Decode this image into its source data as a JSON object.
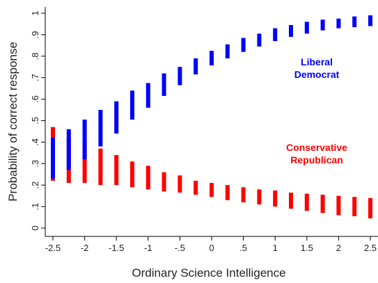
{
  "chart_data": {
    "type": "range_bar",
    "xlabel": "Ordinary Science Intelligence",
    "ylabel": "Probability of correct response",
    "x": [
      -2.5,
      -2.25,
      -2,
      -1.75,
      -1.5,
      -1.25,
      -1,
      -0.75,
      -0.5,
      -0.25,
      0,
      0.25,
      0.5,
      0.75,
      1,
      1.25,
      1.5,
      1.75,
      2,
      2.25,
      2.5
    ],
    "series": [
      {
        "name": "Conservative Republican",
        "color": "#ff0000",
        "low": [
          0.22,
          0.21,
          0.21,
          0.2,
          0.2,
          0.19,
          0.18,
          0.17,
          0.165,
          0.155,
          0.145,
          0.13,
          0.12,
          0.11,
          0.1,
          0.09,
          0.08,
          0.07,
          0.06,
          0.055,
          0.045
        ],
        "high": [
          0.47,
          0.42,
          0.4,
          0.37,
          0.34,
          0.31,
          0.29,
          0.26,
          0.245,
          0.22,
          0.21,
          0.2,
          0.19,
          0.18,
          0.175,
          0.165,
          0.16,
          0.155,
          0.15,
          0.145,
          0.14
        ]
      },
      {
        "name": "Liberal Democrat",
        "color": "#0000ff",
        "low": [
          0.23,
          0.27,
          0.32,
          0.38,
          0.44,
          0.505,
          0.56,
          0.615,
          0.665,
          0.715,
          0.757,
          0.79,
          0.82,
          0.845,
          0.87,
          0.89,
          0.905,
          0.92,
          0.93,
          0.935,
          0.94
        ],
        "high": [
          0.42,
          0.46,
          0.505,
          0.55,
          0.59,
          0.64,
          0.675,
          0.72,
          0.75,
          0.79,
          0.825,
          0.855,
          0.885,
          0.905,
          0.93,
          0.945,
          0.96,
          0.97,
          0.975,
          0.985,
          0.99
        ]
      }
    ],
    "xlim": [
      -2.5,
      2.5
    ],
    "xticks": [
      {
        "value": -2.5,
        "label": "-2.5"
      },
      -2,
      -1.5,
      -1,
      {
        "value": -0.5,
        "label": "-.5"
      },
      0,
      {
        "value": 0.5,
        "label": ".5"
      },
      1,
      1.5,
      2,
      2.5
    ],
    "ylim": [
      0,
      1
    ],
    "yticks": [
      0,
      {
        "value": 0.1,
        "label": ".1"
      },
      {
        "value": 0.2,
        "label": ".2"
      },
      {
        "value": 0.3,
        "label": ".3"
      },
      {
        "value": 0.4,
        "label": ".4"
      },
      {
        "value": 0.5,
        "label": ".5"
      },
      {
        "value": 0.6,
        "label": ".6"
      },
      {
        "value": 0.7,
        "label": ".7"
      },
      {
        "value": 0.8,
        "label": ".8"
      },
      {
        "value": 0.9,
        "label": ".9"
      },
      1
    ]
  }
}
